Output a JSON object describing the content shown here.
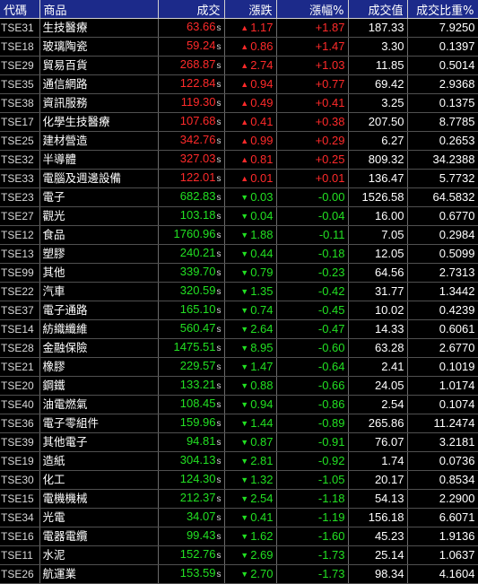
{
  "headers": [
    "代碼",
    "商品",
    "成交",
    "漲跌",
    "漲幅%",
    "成交值",
    "成交比重%"
  ],
  "colors": {
    "up": "#ff2a2a",
    "down": "#22e022",
    "header_bg": "#1c2a8a",
    "background": "#000000"
  },
  "rows": [
    {
      "code": "TSE31",
      "name": "生技醫療",
      "price": "63.66",
      "suffix": "s",
      "dir": "up",
      "arrow": "▲",
      "change": "1.17",
      "pct": "+1.87",
      "value": "187.33",
      "ratio": "7.9250"
    },
    {
      "code": "TSE18",
      "name": "玻璃陶瓷",
      "price": "59.24",
      "suffix": "s",
      "dir": "up",
      "arrow": "▲",
      "change": "0.86",
      "pct": "+1.47",
      "value": "3.30",
      "ratio": "0.1397"
    },
    {
      "code": "TSE29",
      "name": "貿易百貨",
      "price": "268.87",
      "suffix": "s",
      "dir": "up",
      "arrow": "▲",
      "change": "2.74",
      "pct": "+1.03",
      "value": "11.85",
      "ratio": "0.5014"
    },
    {
      "code": "TSE35",
      "name": "通信網路",
      "price": "122.84",
      "suffix": "s",
      "dir": "up",
      "arrow": "▲",
      "change": "0.94",
      "pct": "+0.77",
      "value": "69.42",
      "ratio": "2.9368"
    },
    {
      "code": "TSE38",
      "name": "資訊服務",
      "price": "119.30",
      "suffix": "s",
      "dir": "up",
      "arrow": "▲",
      "change": "0.49",
      "pct": "+0.41",
      "value": "3.25",
      "ratio": "0.1375"
    },
    {
      "code": "TSE17",
      "name": "化學生技醫療",
      "price": "107.68",
      "suffix": "s",
      "dir": "up",
      "arrow": "▲",
      "change": "0.41",
      "pct": "+0.38",
      "value": "207.50",
      "ratio": "8.7785"
    },
    {
      "code": "TSE25",
      "name": "建材營造",
      "price": "342.76",
      "suffix": "s",
      "dir": "up",
      "arrow": "▲",
      "change": "0.99",
      "pct": "+0.29",
      "value": "6.27",
      "ratio": "0.2653"
    },
    {
      "code": "TSE32",
      "name": "半導體",
      "price": "327.03",
      "suffix": "s",
      "dir": "up",
      "arrow": "▲",
      "change": "0.81",
      "pct": "+0.25",
      "value": "809.32",
      "ratio": "34.2388"
    },
    {
      "code": "TSE33",
      "name": "電腦及週邊設備",
      "price": "122.01",
      "suffix": "s",
      "dir": "up",
      "arrow": "▲",
      "change": "0.01",
      "pct": "+0.01",
      "value": "136.47",
      "ratio": "5.7732"
    },
    {
      "code": "TSE23",
      "name": "電子",
      "price": "682.83",
      "suffix": "s",
      "dir": "down",
      "arrow": "▼",
      "change": "0.03",
      "pct": "-0.00",
      "value": "1526.58",
      "ratio": "64.5832"
    },
    {
      "code": "TSE27",
      "name": "觀光",
      "price": "103.18",
      "suffix": "s",
      "dir": "down",
      "arrow": "▼",
      "change": "0.04",
      "pct": "-0.04",
      "value": "16.00",
      "ratio": "0.6770"
    },
    {
      "code": "TSE12",
      "name": "食品",
      "price": "1760.96",
      "suffix": "s",
      "dir": "down",
      "arrow": "▼",
      "change": "1.88",
      "pct": "-0.11",
      "value": "7.05",
      "ratio": "0.2984"
    },
    {
      "code": "TSE13",
      "name": "塑膠",
      "price": "240.21",
      "suffix": "s",
      "dir": "down",
      "arrow": "▼",
      "change": "0.44",
      "pct": "-0.18",
      "value": "12.05",
      "ratio": "0.5099"
    },
    {
      "code": "TSE99",
      "name": "其他",
      "price": "339.70",
      "suffix": "s",
      "dir": "down",
      "arrow": "▼",
      "change": "0.79",
      "pct": "-0.23",
      "value": "64.56",
      "ratio": "2.7313"
    },
    {
      "code": "TSE22",
      "name": "汽車",
      "price": "320.59",
      "suffix": "s",
      "dir": "down",
      "arrow": "▼",
      "change": "1.35",
      "pct": "-0.42",
      "value": "31.77",
      "ratio": "1.3442"
    },
    {
      "code": "TSE37",
      "name": "電子通路",
      "price": "165.10",
      "suffix": "s",
      "dir": "down",
      "arrow": "▼",
      "change": "0.74",
      "pct": "-0.45",
      "value": "10.02",
      "ratio": "0.4239"
    },
    {
      "code": "TSE14",
      "name": "紡織纖維",
      "price": "560.47",
      "suffix": "s",
      "dir": "down",
      "arrow": "▼",
      "change": "2.64",
      "pct": "-0.47",
      "value": "14.33",
      "ratio": "0.6061"
    },
    {
      "code": "TSE28",
      "name": "金融保險",
      "price": "1475.51",
      "suffix": "s",
      "dir": "down",
      "arrow": "▼",
      "change": "8.95",
      "pct": "-0.60",
      "value": "63.28",
      "ratio": "2.6770"
    },
    {
      "code": "TSE21",
      "name": "橡膠",
      "price": "229.57",
      "suffix": "s",
      "dir": "down",
      "arrow": "▼",
      "change": "1.47",
      "pct": "-0.64",
      "value": "2.41",
      "ratio": "0.1019"
    },
    {
      "code": "TSE20",
      "name": "鋼鐵",
      "price": "133.21",
      "suffix": "s",
      "dir": "down",
      "arrow": "▼",
      "change": "0.88",
      "pct": "-0.66",
      "value": "24.05",
      "ratio": "1.0174"
    },
    {
      "code": "TSE40",
      "name": "油電燃氣",
      "price": "108.45",
      "suffix": "s",
      "dir": "down",
      "arrow": "▼",
      "change": "0.94",
      "pct": "-0.86",
      "value": "2.54",
      "ratio": "0.1074"
    },
    {
      "code": "TSE36",
      "name": "電子零組件",
      "price": "159.96",
      "suffix": "s",
      "dir": "down",
      "arrow": "▼",
      "change": "1.44",
      "pct": "-0.89",
      "value": "265.86",
      "ratio": "11.2474"
    },
    {
      "code": "TSE39",
      "name": "其他電子",
      "price": "94.81",
      "suffix": "s",
      "dir": "down",
      "arrow": "▼",
      "change": "0.87",
      "pct": "-0.91",
      "value": "76.07",
      "ratio": "3.2181"
    },
    {
      "code": "TSE19",
      "name": "造紙",
      "price": "304.13",
      "suffix": "s",
      "dir": "down",
      "arrow": "▼",
      "change": "2.81",
      "pct": "-0.92",
      "value": "1.74",
      "ratio": "0.0736"
    },
    {
      "code": "TSE30",
      "name": "化工",
      "price": "124.30",
      "suffix": "s",
      "dir": "down",
      "arrow": "▼",
      "change": "1.32",
      "pct": "-1.05",
      "value": "20.17",
      "ratio": "0.8534"
    },
    {
      "code": "TSE15",
      "name": "電機機械",
      "price": "212.37",
      "suffix": "s",
      "dir": "down",
      "arrow": "▼",
      "change": "2.54",
      "pct": "-1.18",
      "value": "54.13",
      "ratio": "2.2900"
    },
    {
      "code": "TSE34",
      "name": "光電",
      "price": "34.07",
      "suffix": "s",
      "dir": "down",
      "arrow": "▼",
      "change": "0.41",
      "pct": "-1.19",
      "value": "156.18",
      "ratio": "6.6071"
    },
    {
      "code": "TSE16",
      "name": "電器電纜",
      "price": "99.43",
      "suffix": "s",
      "dir": "down",
      "arrow": "▼",
      "change": "1.62",
      "pct": "-1.60",
      "value": "45.23",
      "ratio": "1.9136"
    },
    {
      "code": "TSE11",
      "name": "水泥",
      "price": "152.76",
      "suffix": "s",
      "dir": "down",
      "arrow": "▼",
      "change": "2.69",
      "pct": "-1.73",
      "value": "25.14",
      "ratio": "1.0637"
    },
    {
      "code": "TSE26",
      "name": "航運業",
      "price": "153.59",
      "suffix": "s",
      "dir": "down",
      "arrow": "▼",
      "change": "2.70",
      "pct": "-1.73",
      "value": "98.34",
      "ratio": "4.1604"
    }
  ]
}
